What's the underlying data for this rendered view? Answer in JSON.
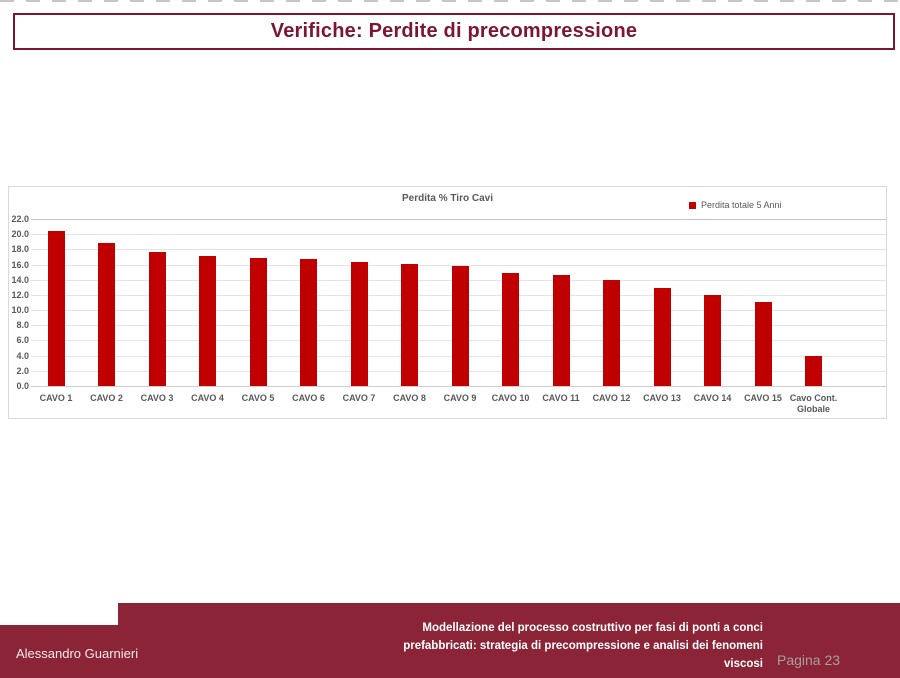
{
  "slide": {
    "title": "Verifiche: Perdite di precompressione"
  },
  "chart_data": {
    "type": "bar",
    "title": "Perdita % Tiro Cavi",
    "legend": [
      "Perdita totale 5 Anni"
    ],
    "legend_position": "top-right",
    "categories": [
      "CAVO 1",
      "CAVO 2",
      "CAVO 3",
      "CAVO 4",
      "CAVO 5",
      "CAVO 6",
      "CAVO 7",
      "CAVO 8",
      "CAVO 9",
      "CAVO 10",
      "CAVO 11",
      "CAVO 12",
      "CAVO 13",
      "CAVO 14",
      "CAVO 15",
      "Cavo Cont. Globale"
    ],
    "values": [
      20.4,
      18.8,
      17.6,
      17.1,
      16.9,
      16.7,
      16.4,
      16.1,
      15.8,
      14.9,
      14.6,
      13.9,
      12.9,
      12.0,
      11.1,
      3.9
    ],
    "xlabel": "",
    "ylabel": "",
    "ylim": [
      0,
      22
    ],
    "ytick_step": 2,
    "ytick_decimals": 1,
    "grid": true,
    "bar_color": "#c00000"
  },
  "footer": {
    "author": "Alessandro Guarnieri",
    "thesis_title_lines": [
      "Modellazione del processo costruttivo per fasi di ponti a conci",
      "prefabbricati: strategia di precompressione e analisi dei fenomeni",
      "viscosi"
    ],
    "page_label": "Pagina 23"
  },
  "colors": {
    "accent_maroon": "#8b2437",
    "title_text": "#7b1733",
    "bar_red": "#c00000",
    "axis_text": "#595959",
    "gridline": "#e4e4e4",
    "page_label_gray": "#a79fa3"
  }
}
